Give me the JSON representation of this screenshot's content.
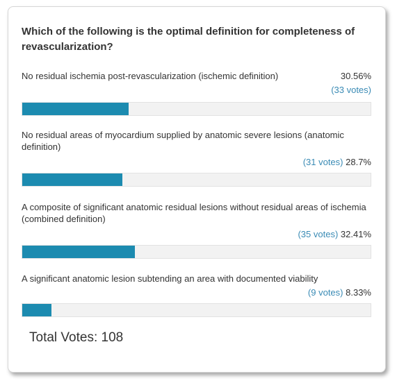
{
  "poll": {
    "question": "Which of the following is the optimal definition for completeness of revascularization?",
    "answers": [
      {
        "text": "No residual ischemia post-revascularization (ischemic definition)",
        "votes_label": "(33 votes)",
        "percent_label": "30.56%",
        "fraction": 0.3056
      },
      {
        "text": "No residual areas of myocardium supplied by anatomic severe lesions (anatomic definition)",
        "votes_label": "(31 votes)",
        "percent_label": "28.7%",
        "fraction": 0.287
      },
      {
        "text": "A composite of significant anatomic residual lesions without residual areas of ischemia (combined definition)",
        "votes_label": "(35 votes)",
        "percent_label": "32.41%",
        "fraction": 0.3241
      },
      {
        "text": "A significant anatomic lesion subtending an area with documented viability",
        "votes_label": "(9 votes)",
        "percent_label": "8.33%",
        "fraction": 0.0833
      }
    ],
    "total_votes": "Total Votes: 108",
    "colors": {
      "bar_fill": "#1c8bb0",
      "bar_track": "#f2f2f2",
      "votes_text": "#3a8bb5"
    }
  }
}
